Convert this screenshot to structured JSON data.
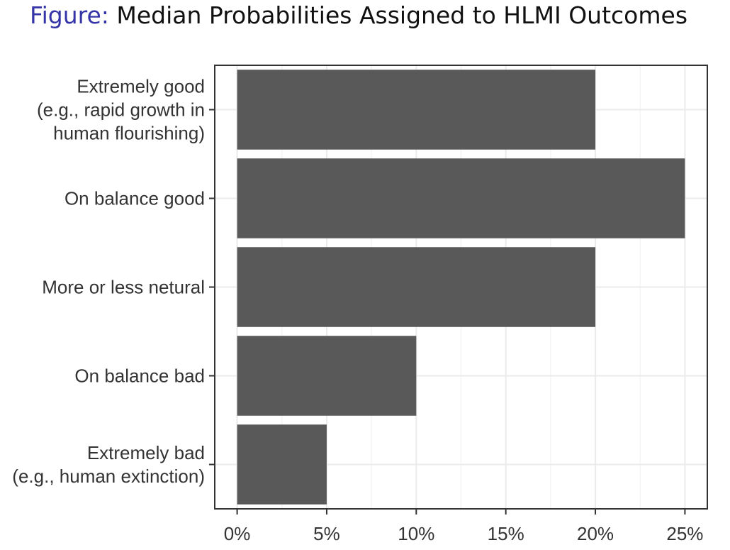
{
  "title": {
    "prefix": "Figure:",
    "text": "Median Probabilities Assigned to HLMI Outcomes"
  },
  "colors": {
    "title_prefix": "#3434a8",
    "bar": "#595959",
    "panel_border": "#333333",
    "grid_major": "#ebebeb",
    "grid_minor": "#f5f5f5",
    "text": "#333333"
  },
  "chart_data": {
    "type": "bar",
    "orientation": "horizontal",
    "categories": [
      [
        "Extremely good",
        "(e.g., rapid growth in",
        "human flourishing)"
      ],
      [
        "On balance good"
      ],
      [
        "More or less netural"
      ],
      [
        "On balance bad"
      ],
      [
        "Extremely bad",
        "(e.g., human extinction)"
      ]
    ],
    "values": [
      20,
      25,
      20,
      10,
      5
    ],
    "xlim": [
      -1.25,
      26.25
    ],
    "x_ticks": [
      0,
      5,
      10,
      15,
      20,
      25
    ],
    "x_tick_labels": [
      "0%",
      "5%",
      "10%",
      "15%",
      "20%",
      "25%"
    ],
    "xlabel": "",
    "ylabel": "",
    "grid": true
  }
}
